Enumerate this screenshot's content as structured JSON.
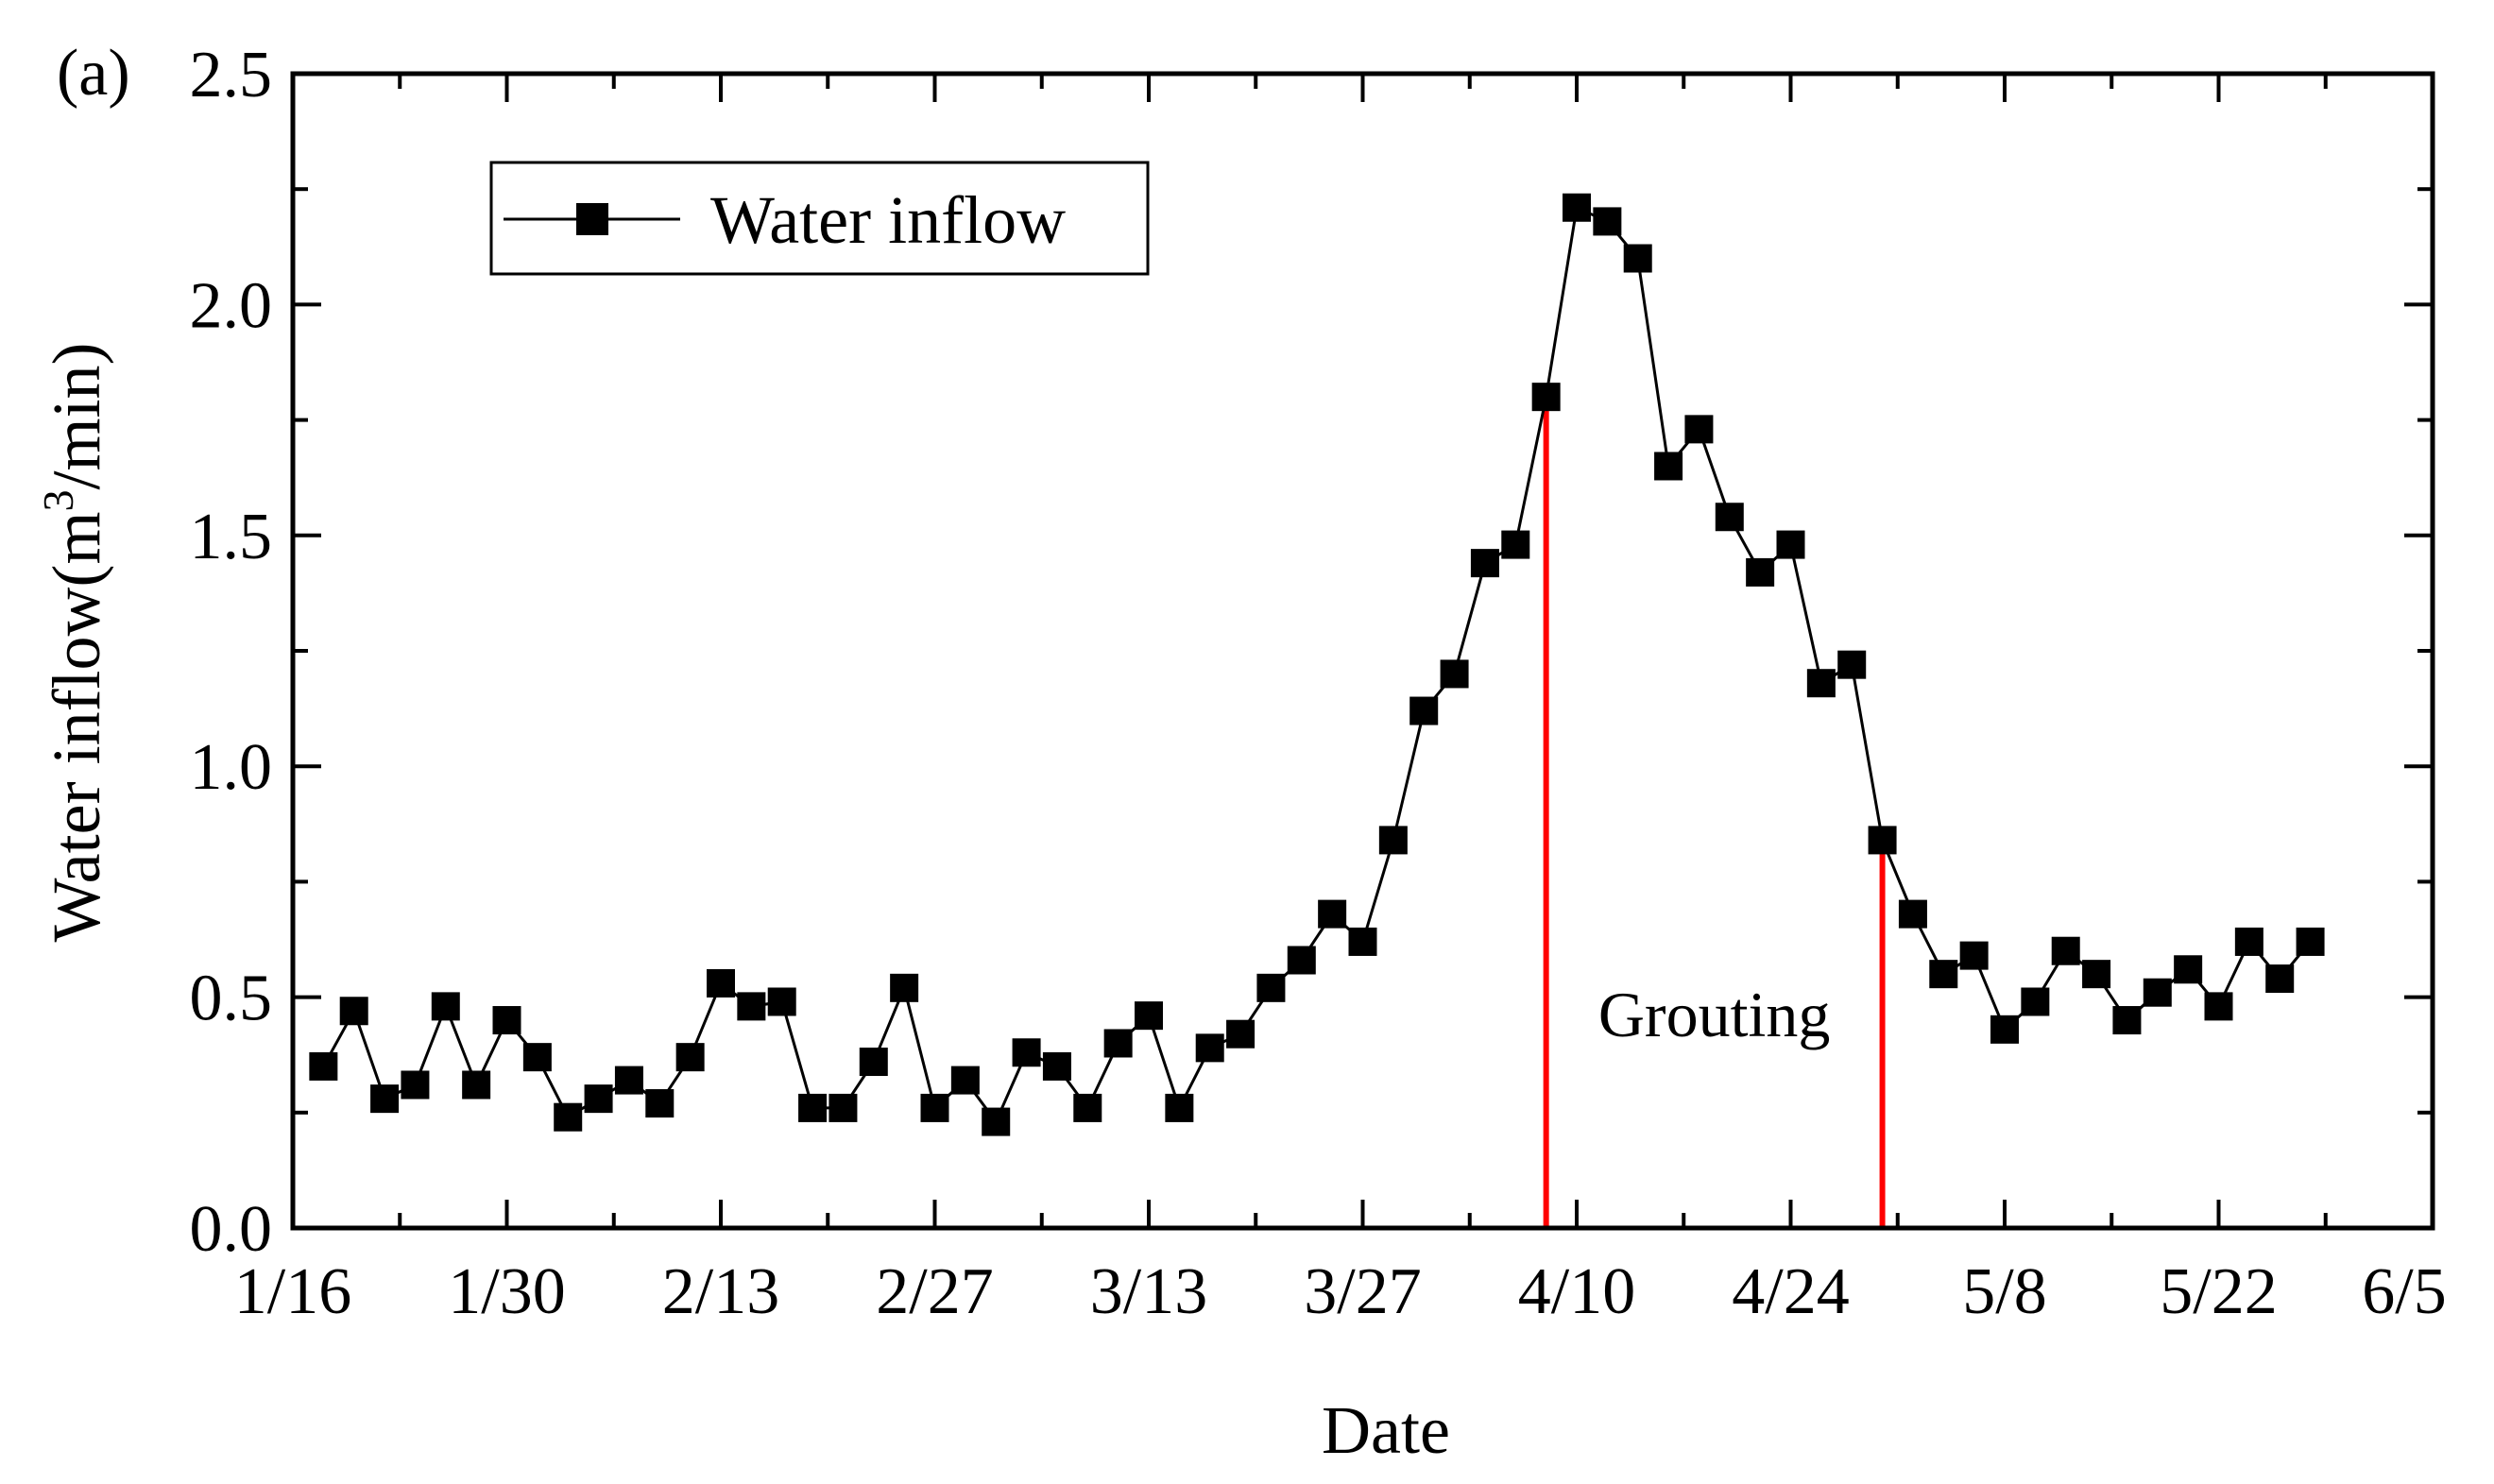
{
  "chart_data": {
    "type": "line",
    "panel_label": "(a)",
    "xlabel": "Date",
    "ylabel_main": "Water inflow(m",
    "ylabel_superscript": "3",
    "ylabel_tail": "/min)",
    "ylim": [
      0,
      2.5
    ],
    "yticks": [
      "0.0",
      "0.5",
      "1.0",
      "1.5",
      "2.0",
      "2.5"
    ],
    "xlim_days": [
      0,
      140
    ],
    "xticks": [
      {
        "label": "1/16",
        "day": 0
      },
      {
        "label": "1/30",
        "day": 14
      },
      {
        "label": "2/13",
        "day": 28
      },
      {
        "label": "2/27",
        "day": 42
      },
      {
        "label": "3/13",
        "day": 56
      },
      {
        "label": "3/27",
        "day": 70
      },
      {
        "label": "4/10",
        "day": 84
      },
      {
        "label": "4/24",
        "day": 98
      },
      {
        "label": "5/8",
        "day": 112
      },
      {
        "label": "5/22",
        "day": 126
      },
      {
        "label": "6/5",
        "day": 140
      }
    ],
    "grid": false,
    "legend": {
      "label": "Water inflow",
      "position": "top-left"
    },
    "series": [
      {
        "name": "Water inflow",
        "color": "#000000",
        "marker": "square",
        "days": [
          2,
          4,
          6,
          8,
          10,
          12,
          14,
          16,
          18,
          20,
          22,
          24,
          26,
          28,
          30,
          32,
          34,
          36,
          38,
          40,
          42,
          44,
          46,
          48,
          50,
          52,
          54,
          56,
          58,
          60,
          62,
          64,
          66,
          68,
          70,
          72,
          74,
          76,
          78,
          80,
          82,
          84,
          86,
          88,
          90,
          92,
          94,
          96,
          98,
          100,
          102,
          104,
          106,
          108,
          110,
          112,
          114,
          116,
          118,
          120,
          122,
          124,
          126,
          128,
          130,
          132
        ],
        "values": [
          0.35,
          0.47,
          0.28,
          0.31,
          0.48,
          0.31,
          0.45,
          0.37,
          0.24,
          0.28,
          0.32,
          0.27,
          0.37,
          0.53,
          0.48,
          0.49,
          0.26,
          0.26,
          0.36,
          0.52,
          0.26,
          0.32,
          0.23,
          0.38,
          0.35,
          0.26,
          0.4,
          0.46,
          0.26,
          0.39,
          0.42,
          0.52,
          0.58,
          0.68,
          0.62,
          0.84,
          1.12,
          1.2,
          1.44,
          1.48,
          1.8,
          2.21,
          2.18,
          2.1,
          1.65,
          1.73,
          1.54,
          1.42,
          1.48,
          1.18,
          1.22,
          0.84,
          0.68,
          0.55,
          0.59,
          0.43,
          0.49,
          0.6,
          0.55,
          0.45,
          0.51,
          0.56,
          0.48,
          0.62,
          0.54,
          0.62
        ]
      }
    ],
    "annotations": [
      {
        "type": "vline",
        "day": 82,
        "to_value": 1.8,
        "color": "#ff0000"
      },
      {
        "type": "vline",
        "day": 104,
        "to_value": 0.84,
        "color": "#ff0000"
      },
      {
        "type": "text",
        "text": "Grouting",
        "day": 93,
        "value": 0.46
      }
    ]
  }
}
